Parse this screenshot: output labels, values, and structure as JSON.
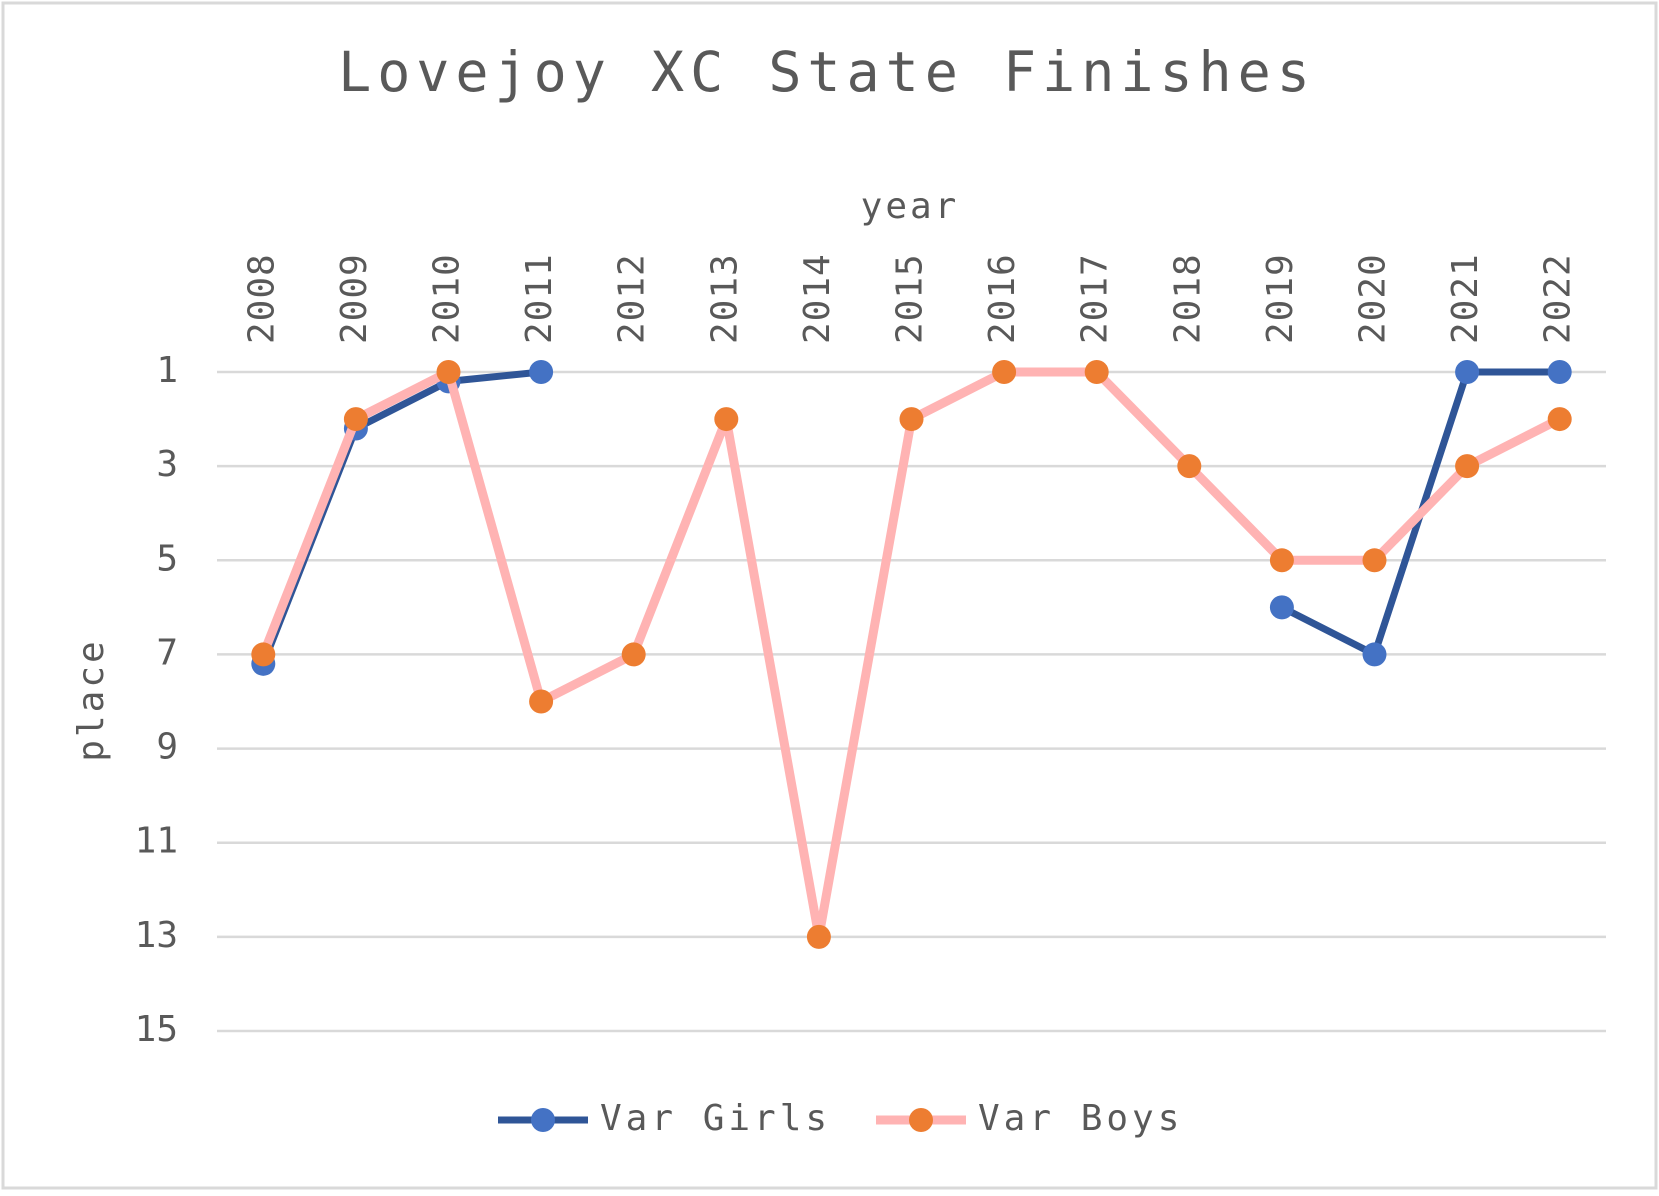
{
  "chart_data": {
    "type": "line",
    "title": "Lovejoy XC State Finishes",
    "x_label": "year",
    "y_label": "place",
    "categories": [
      "2008",
      "2009",
      "2010",
      "2011",
      "2012",
      "2013",
      "2014",
      "2015",
      "2016",
      "2017",
      "2018",
      "2019",
      "2020",
      "2021",
      "2022"
    ],
    "series": [
      {
        "name": "Var Girls",
        "color": "#2f5597",
        "marker_color": "#4472c4",
        "values": [
          7.2,
          2.2,
          1.2,
          1,
          null,
          null,
          null,
          null,
          null,
          null,
          null,
          6,
          7,
          1,
          1
        ]
      },
      {
        "name": "Var Boys",
        "color": "#ffb3b3",
        "marker_color": "#ed7d31",
        "values": [
          7,
          2,
          1,
          8,
          7,
          2,
          13,
          2,
          1,
          1,
          3,
          5,
          5,
          3,
          2
        ]
      }
    ],
    "ylim": [
      1,
      15
    ],
    "yticks": [
      1,
      3,
      5,
      7,
      9,
      11,
      13,
      15
    ],
    "y_inverted": true,
    "x_axis_position": "top",
    "grid": true,
    "legend": "bottom"
  }
}
